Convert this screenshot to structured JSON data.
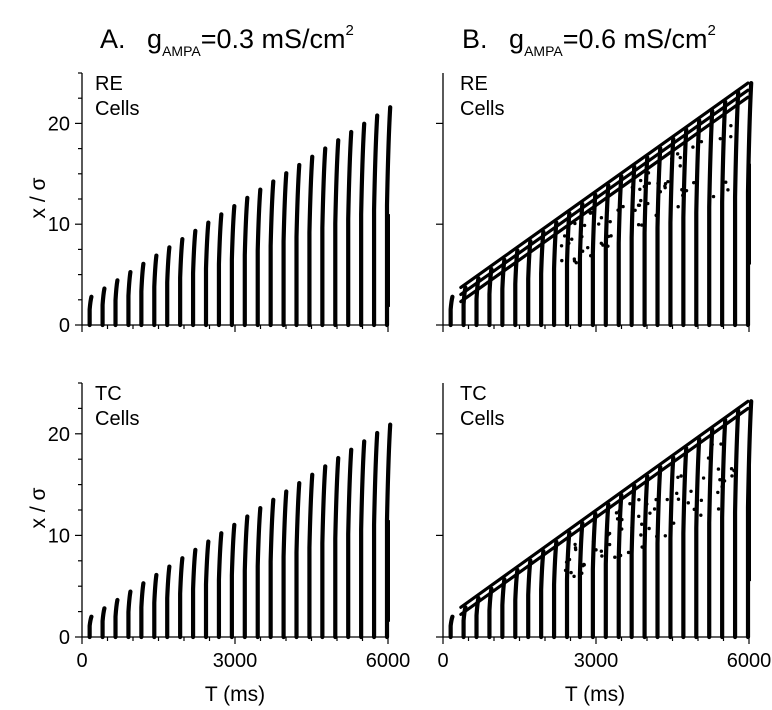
{
  "columns": [
    {
      "letter": "A.",
      "g": "g",
      "sub": "AMPA",
      "value": "=0.3 mS/cm",
      "sup": "2"
    },
    {
      "letter": "B.",
      "g": "g",
      "sub": "AMPA",
      "value": "=0.6 mS/cm",
      "sup": "2"
    }
  ],
  "chart_data": [
    {
      "type": "scatter",
      "panel": "A-top",
      "label_line1": "RE",
      "label_line2": "Cells",
      "ylabel": "x / σ",
      "xlabel": "",
      "xlim": [
        0,
        6000
      ],
      "ylim": [
        0,
        25
      ],
      "yticks": [
        0,
        10,
        20
      ],
      "xticks": [],
      "burst_start_ms": 150,
      "burst_interval_ms": 253.5,
      "n_bursts": 24,
      "wave_front": {
        "x": [
          150,
          5980
        ],
        "y": [
          2.8,
          21.6
        ]
      },
      "trailing_fragment": {
        "x": 6000,
        "y": [
          1.8,
          11
        ]
      },
      "dense_outer_lines": 0,
      "scattered_spikes": false
    },
    {
      "type": "scatter",
      "panel": "B-top",
      "label_line1": "RE",
      "label_line2": "Cells",
      "ylabel": "",
      "xlabel": "",
      "xlim": [
        0,
        6000
      ],
      "ylim": [
        0,
        25
      ],
      "yticks": [],
      "xticks": [],
      "burst_start_ms": 150,
      "burst_interval_ms": 253.5,
      "n_bursts": 24,
      "wave_front": {
        "x": [
          150,
          5980
        ],
        "y": [
          2.8,
          24
        ]
      },
      "trailing_fragment": {
        "x": 6000,
        "y": [
          6,
          16
        ]
      },
      "dense_outer_lines": 3,
      "scattered_spikes": true
    },
    {
      "type": "scatter",
      "panel": "A-bottom",
      "label_line1": "TC",
      "label_line2": "Cells",
      "ylabel": "x / σ",
      "xlabel": "T (ms)",
      "xlim": [
        0,
        6000
      ],
      "ylim": [
        0,
        25
      ],
      "yticks": [
        0,
        10,
        20
      ],
      "xticks": [
        0,
        3000,
        6000
      ],
      "burst_start_ms": 150,
      "burst_interval_ms": 253.5,
      "n_bursts": 24,
      "wave_front": {
        "x": [
          150,
          5980
        ],
        "y": [
          2.0,
          20.9
        ]
      },
      "trailing_fragment": {
        "x": 6000,
        "y": [
          1.5,
          11.5
        ]
      },
      "dense_outer_lines": 0,
      "scattered_spikes": false
    },
    {
      "type": "scatter",
      "panel": "B-bottom",
      "label_line1": "TC",
      "label_line2": "Cells",
      "ylabel": "",
      "xlabel": "T (ms)",
      "xlim": [
        0,
        6000
      ],
      "ylim": [
        0,
        25
      ],
      "yticks": [],
      "xticks": [
        0,
        3000,
        6000
      ],
      "burst_start_ms": 150,
      "burst_interval_ms": 253.5,
      "n_bursts": 24,
      "wave_front": {
        "x": [
          150,
          5980
        ],
        "y": [
          2.0,
          23.2
        ]
      },
      "trailing_fragment": {
        "x": 6000,
        "y": [
          5.5,
          17
        ]
      },
      "dense_outer_lines": 2,
      "scattered_spikes": true
    }
  ]
}
